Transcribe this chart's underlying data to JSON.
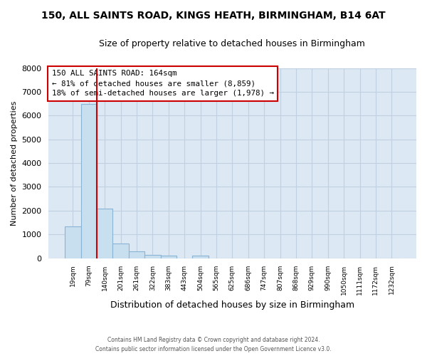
{
  "title_line1": "150, ALL SAINTS ROAD, KINGS HEATH, BIRMINGHAM, B14 6AT",
  "title_line2": "Size of property relative to detached houses in Birmingham",
  "xlabel": "Distribution of detached houses by size in Birmingham",
  "ylabel": "Number of detached properties",
  "bar_labels": [
    "19sqm",
    "79sqm",
    "140sqm",
    "201sqm",
    "261sqm",
    "322sqm",
    "383sqm",
    "443sqm",
    "504sqm",
    "565sqm",
    "625sqm",
    "686sqm",
    "747sqm",
    "807sqm",
    "868sqm",
    "929sqm",
    "990sqm",
    "1050sqm",
    "1111sqm",
    "1172sqm",
    "1232sqm"
  ],
  "bar_values": [
    1330,
    6500,
    2090,
    620,
    295,
    140,
    100,
    0,
    100,
    0,
    0,
    0,
    0,
    0,
    0,
    0,
    0,
    0,
    0,
    0,
    0
  ],
  "bar_color": "#c8dff0",
  "bar_edge_color": "#8ab4d4",
  "property_line_x": 1.5,
  "annotation_box_color": "#ffffff",
  "annotation_box_edge_color": "#cc0000",
  "annotation_label": "150 ALL SAINTS ROAD: 164sqm",
  "annotation_smaller": "← 81% of detached houses are smaller (8,859)",
  "annotation_larger": "18% of semi-detached houses are larger (1,978) →",
  "red_line_color": "#cc0000",
  "ylim": [
    0,
    8000
  ],
  "yticks": [
    0,
    1000,
    2000,
    3000,
    4000,
    5000,
    6000,
    7000,
    8000
  ],
  "grid_color": "#c0d0e0",
  "background_color": "#dce8f4",
  "footer_line1": "Contains HM Land Registry data © Crown copyright and database right 2024.",
  "footer_line2": "Contains public sector information licensed under the Open Government Licence v3.0."
}
